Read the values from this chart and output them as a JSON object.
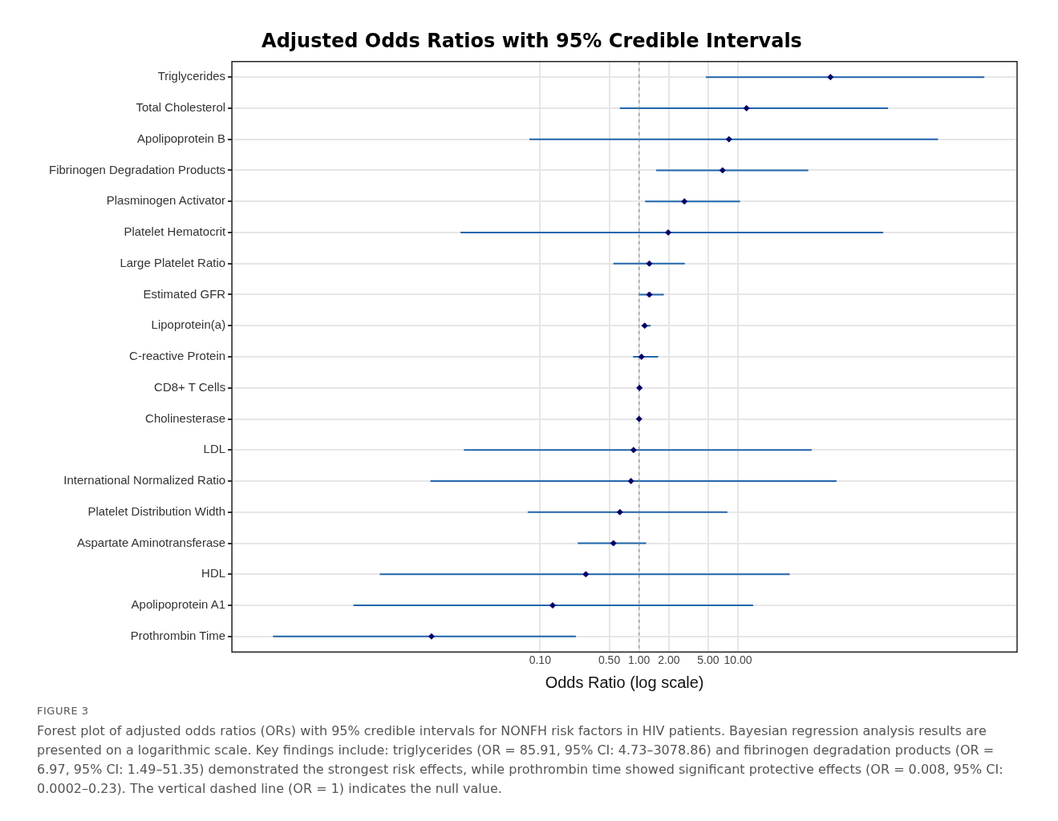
{
  "chart_data": {
    "type": "scatter",
    "orientation": "horizontal",
    "title": "Adjusted Odds Ratios with 95% Credible Intervals",
    "xlabel": "Odds Ratio (log scale)",
    "categories": [
      "Triglycerides",
      "Total Cholesterol",
      "Apolipoprotein B",
      "Fibrinogen Degradation Products",
      "Plasminogen Activator",
      "Platelet Hematocrit",
      "Large Platelet Ratio",
      "Estimated GFR",
      "Lipoprotein(a)",
      "C-reactive Protein",
      "CD8+ T Cells",
      "Cholinesterase",
      "LDL",
      "International Normalized Ratio",
      "Platelet Distribution Width",
      "Aspartate Aminotransferase",
      "HDL",
      "Apolipoprotein A1",
      "Prothrombin Time"
    ],
    "series": [
      {
        "color": "#2166ac",
        "colors": [
          "#000066",
          "#000066",
          "#000066",
          "#000066",
          "#000066",
          "#000066",
          "#000066",
          "#000066",
          "#000066",
          "#000066",
          "#000066",
          "#000066",
          "#000066",
          "#000066",
          "#000066",
          "#000066",
          "#000066",
          "#000066",
          "#000066"
        ],
        "values": [
          85.91,
          12.2,
          8.1,
          6.97,
          2.87,
          1.97,
          1.27,
          1.27,
          1.14,
          1.06,
          1.01,
          1.0,
          0.88,
          0.83,
          0.64,
          0.55,
          0.29,
          0.134,
          0.008
        ],
        "errors": [
          [
            4.73,
            3078.86
          ],
          [
            0.64,
            328
          ],
          [
            0.078,
            1050
          ],
          [
            1.49,
            51.35
          ],
          [
            1.15,
            10.5
          ],
          [
            0.0157,
            293
          ],
          [
            0.55,
            2.9
          ],
          [
            1.0,
            1.78
          ],
          [
            1.06,
            1.31
          ],
          [
            0.87,
            1.56
          ],
          null,
          null,
          [
            0.017,
            55.6
          ],
          [
            0.0078,
            98.9
          ],
          [
            0.075,
            7.8
          ],
          [
            0.24,
            1.18
          ],
          [
            0.0024,
            33.3
          ],
          [
            0.0013,
            14.2
          ],
          [
            0.0002,
            0.23
          ]
        ]
      }
    ],
    "log": "x",
    "xlim": [
      7.7e-05,
      6600
    ],
    "xticks": [
      {
        "value": 0.1,
        "label": "0.10"
      },
      {
        "value": 0.5,
        "label": "0.50"
      },
      {
        "value": 1,
        "label": "1.00"
      },
      {
        "value": 2,
        "label": "2.00"
      },
      {
        "value": 5,
        "label": "5.00"
      },
      {
        "value": 10,
        "label": "10.00"
      }
    ],
    "grid": true,
    "legend": false,
    "marker": "diamond",
    "ref_lines": [
      {
        "axis": "x",
        "value": 1,
        "color": "#808080",
        "line_style": "dashed"
      }
    ],
    "annotations": [
      "FIGURE 3",
      "Forest plot of adjusted odds ratios (ORs) with 95% credible intervals for NONFH risk factors in HIV patients. Bayesian regression analysis results are presented on a logarithmic scale. Key findings include: triglycerides (OR = 85.91, 95% CI: 4.73–3078.86) and fibrinogen degradation products (OR = 6.97, 95% CI: 1.49–51.35) demonstrated the strongest risk effects, while prothrombin time showed significant protective effects (OR = 0.008, 95% CI: 0.0002–0.23). The vertical dashed line (OR = 1) indicates the null value."
    ]
  }
}
